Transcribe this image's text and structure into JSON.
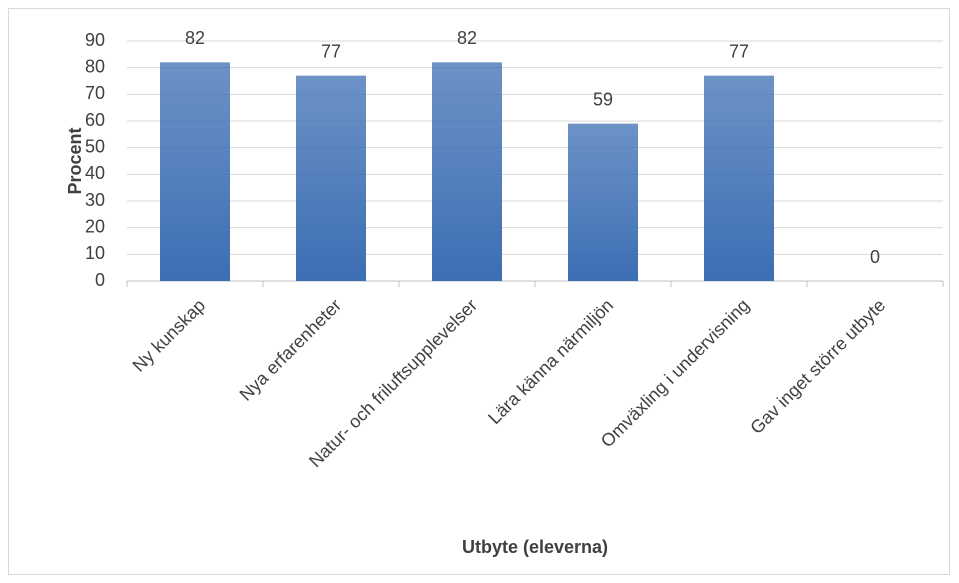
{
  "chart_data": {
    "type": "bar",
    "categories": [
      "Ny kunskap",
      "Nya erfarenheter",
      "Natur- och friluftsupplevelser",
      "Lära känna närmiljön",
      "Omväxling i undervisning",
      "Gav inget större utbyte"
    ],
    "values": [
      82,
      77,
      82,
      59,
      77,
      0
    ],
    "color": "#3c6eb4",
    "ylabel": "Procent",
    "xlabel": "Utbyte (eleverna)",
    "ylim": [
      0,
      90
    ],
    "yticks": [
      0,
      10,
      20,
      30,
      40,
      50,
      60,
      70,
      80,
      90
    ],
    "grid": true
  }
}
